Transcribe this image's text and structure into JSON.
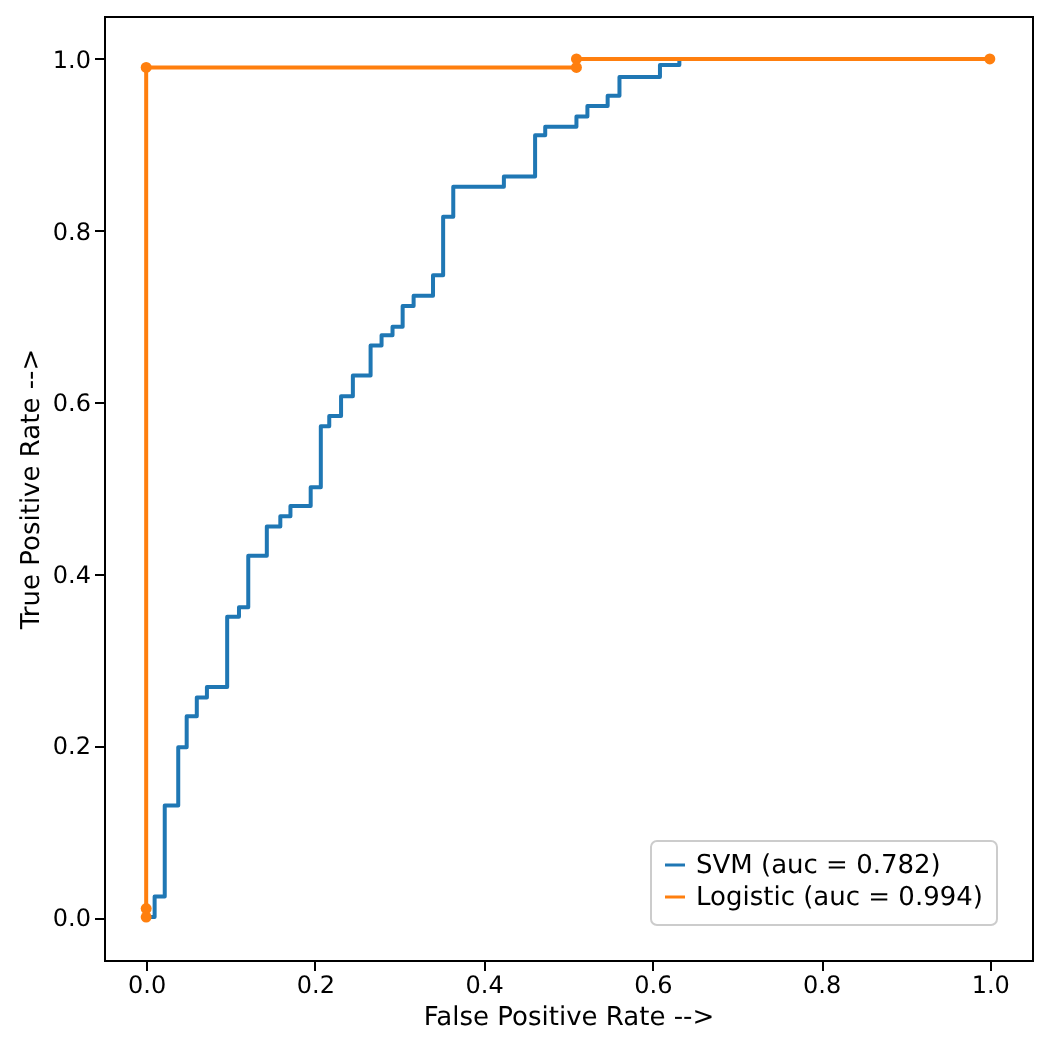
{
  "chart_data": {
    "type": "line",
    "xlabel": "False Positive Rate -->",
    "ylabel": "True Positive Rate -->",
    "xlim": [
      -0.05,
      1.05
    ],
    "ylim": [
      -0.05,
      1.05
    ],
    "xticks": [
      {
        "value": 0,
        "label": "0.0"
      },
      {
        "value": 0.2,
        "label": "0.2"
      },
      {
        "value": 0.4,
        "label": "0.4"
      },
      {
        "value": 0.6,
        "label": "0.6"
      },
      {
        "value": 0.8,
        "label": "0.8"
      },
      {
        "value": 1,
        "label": "1.0"
      }
    ],
    "yticks": [
      {
        "value": 0,
        "label": "0.0"
      },
      {
        "value": 0.2,
        "label": "0.2"
      },
      {
        "value": 0.4,
        "label": "0.4"
      },
      {
        "value": 0.6,
        "label": "0.6"
      },
      {
        "value": 0.8,
        "label": "0.8"
      },
      {
        "value": 1,
        "label": "1.0"
      }
    ],
    "grid": false,
    "legend": "bottom right",
    "line_style": "solid",
    "series": [
      {
        "name": "SVM (auc = 0.782)",
        "color": "#1f77b4",
        "marker": "none",
        "x": [
          0,
          0.01,
          0.01,
          0.022,
          0.022,
          0.038,
          0.038,
          0.048,
          0.048,
          0.06,
          0.06,
          0.072,
          0.072,
          0.096,
          0.096,
          0.11,
          0.11,
          0.121,
          0.121,
          0.143,
          0.143,
          0.159,
          0.159,
          0.171,
          0.171,
          0.195,
          0.195,
          0.207,
          0.207,
          0.217,
          0.217,
          0.231,
          0.231,
          0.245,
          0.245,
          0.266,
          0.266,
          0.279,
          0.279,
          0.292,
          0.292,
          0.304,
          0.304,
          0.317,
          0.317,
          0.34,
          0.34,
          0.352,
          0.352,
          0.364,
          0.364,
          0.424,
          0.424,
          0.461,
          0.461,
          0.473,
          0.473,
          0.51,
          0.51,
          0.523,
          0.523,
          0.547,
          0.547,
          0.561,
          0.561,
          0.609,
          0.609,
          0.632,
          0.632,
          1
        ],
        "values": [
          0,
          0,
          0.024,
          0.024,
          0.13,
          0.13,
          0.198,
          0.198,
          0.234,
          0.234,
          0.256,
          0.256,
          0.268,
          0.268,
          0.35,
          0.35,
          0.361,
          0.361,
          0.421,
          0.421,
          0.455,
          0.455,
          0.467,
          0.467,
          0.479,
          0.479,
          0.501,
          0.501,
          0.572,
          0.572,
          0.584,
          0.584,
          0.607,
          0.607,
          0.631,
          0.631,
          0.666,
          0.666,
          0.678,
          0.678,
          0.688,
          0.688,
          0.712,
          0.712,
          0.724,
          0.724,
          0.748,
          0.748,
          0.816,
          0.816,
          0.851,
          0.851,
          0.863,
          0.863,
          0.911,
          0.911,
          0.921,
          0.921,
          0.933,
          0.933,
          0.945,
          0.945,
          0.957,
          0.957,
          0.979,
          0.979,
          0.993,
          0.993,
          1.0,
          1.0
        ]
      },
      {
        "name": "Logistic (auc = 0.994)",
        "color": "#ff7f0e",
        "marker": "circle",
        "x": [
          0,
          0,
          0,
          0.51,
          0.51,
          1
        ],
        "values": [
          0,
          0.01,
          0.99,
          0.99,
          1.0,
          1.0
        ]
      }
    ]
  }
}
